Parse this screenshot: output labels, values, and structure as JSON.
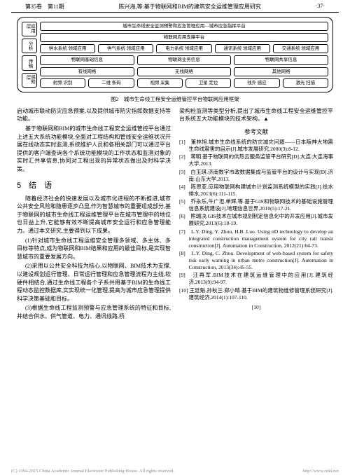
{
  "header": {
    "left": "第35卷　第11期",
    "center": "陈兴海,等:基于物联网和BIM的建筑安全运维管理应用研究",
    "right": "·37·"
  },
  "diagram": {
    "caption": "图2　城市生命线工程安全运维管控平台物联网应用框架",
    "side_labels": [
      "应用层",
      "分析",
      "传输",
      "感知层",
      "网络层"
    ],
    "rows": [
      {
        "cells": [
          "城市生命线安全监测预警和应急管理应用—城市应急指挥平台"
        ]
      },
      {
        "cells": [
          "物联网应用支撑平台"
        ]
      },
      {
        "cells": [
          "供水系统\n领域应用",
          "供气系统\n领域应用",
          "电力系统\n领域应用",
          "通讯系统\n领域应用",
          "交通系统\n领域应用"
        ]
      },
      {
        "cells": [
          "物联网基础信息",
          "物联网业务信息",
          "物联网共享信息"
        ]
      },
      {
        "cells": [
          "有线网络",
          "无线网络",
          "其他网络"
        ]
      },
      {
        "cells": [
          "射频\n识别",
          "二维\n条码",
          "视频\n采集",
          "卫星\n定位",
          "线外\n感应",
          "激光\n扫描"
        ]
      }
    ]
  },
  "left_col": {
    "p1": "启动城市联动防灾应急预案,以及提供城市防灾指挥数据支持等功能。",
    "p2": "基于物联网和BIM的城市生命线工程安全运维管控平台通过上述五大系统功能模块,全面对工程结构和管线安全运维状况开展在线动态实时监测,系统维护人员和各相关部门可以通过平台提供的客户端查询各个系统功能模块的工作状态和监测对象的实时汇共享信息,协同对工程出现的异常状态做出及时科学决策。",
    "section_title": "5　结　语",
    "p3": "随着经济社会的快速发展以及城市化进程的不断推进,城市公共安全风险和隐患逐步凸显,作为智慧城市的重要组成部分,基于物联网的城市生命线工程运维管理平台在城市管理中的地位也日益上升,它能够有效不断提高城市安全运行和应急管理能力。通过本文研究,主要得到以下成果。",
    "p4": "(1)针对城市生命线工程运维安全管理多领域、多主体、多目标等特点,成为物联网和BIM结果和应用的最佳目标,是实现智慧城市的重要发展方向。",
    "p5": "(2)采用以公共安全科技为核心,以物联网、BIM技术为支撑,以建设规划运行管理、日常运行管理和应急管理流程为主线,软硬件相结合,通过生命线工程各个子系共用基于BIM的生命线工程动态监控数据库,实实现统一化管理,提高为城市应急管理提供科学决策基础和目标。",
    "p6": "(3)根据生命线工程监测预警与应急管理系统的特征和目标,并结合供水、供气管道、电力、通讯线路,桥"
  },
  "right_col": {
    "p1": "梁构检监测等类型分析,提出了城市生命线工程安全运维管控平台系统五大功能模块的技术架构。",
    "end_mark": "▲",
    "ref_title": "参考文献",
    "refs": [
      "[1]　董林旭.城市生命线系统的防灾减灾问题——日本阪神大地震生命线震害的启示[J].城市发展研究,2000(3):8-12.",
      "[2]　蒋明.基于物联网的供热云服务监管平台研究[D].大连:大连海事大学,2013.",
      "[3]　白玉琪.济南数字市政数据集成与监管平台的设计与实现[D].济南:山东大学,2013.",
      "[4]　陈思亚.应用物联网构建城市计划监测系统模型的实践[J].给水排水,2013(6):111-115.",
      "[5]　乔永乐,牛广坦,单辉,等.基于GIS和物联网技术的基础设施管理信息系统建设[J].地理信息世界,2010(5):17-21.",
      "[6]　熊瑞决.GIS技术在城市规划制定信息化中的开发应用[J].城市发展研究,2013(6):18-19.",
      "[7]　L.Y. Ding, Y. Zhou, H.B. Luo. Using nD technology to develop an integrated construction management system for city rail transit construction[J]. Automation in Construction, 2012(21):64-73.",
      "[8]　L.Y. Ding, C. Zhou. Development of web-based system for safety risk early warning in urban metro construction[J]. Automation in Construction, 2013(34):45-55.",
      "[9]　汪再军.BIM技术在建筑运维管理中的应用[J].建筑经济,2013(9):94-97.",
      "[10]  王廷魁,孙秋兰.郑小晴.基于BIM的建筑物维修管理系统研究[J].建筑经济,2014(1):107-110."
    ],
    "trailing": "[10]"
  },
  "footer": {
    "left": "(C) 1994-2015 China Academic Journal Electronic Publishing House. All rights reserved.",
    "right": "http://www.cnki.net"
  }
}
